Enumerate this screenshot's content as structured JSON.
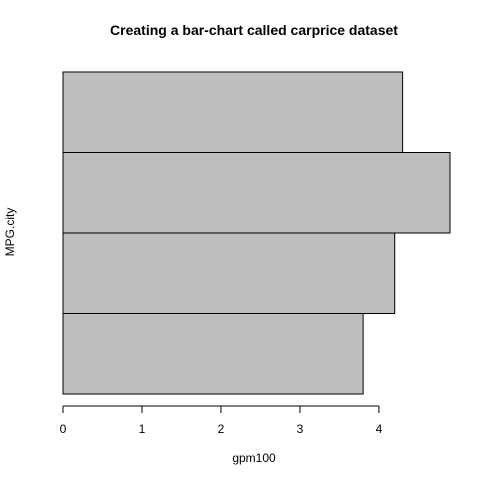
{
  "chart_data": {
    "type": "bar",
    "orientation": "horizontal",
    "title": "Creating a bar-chart called carprice dataset",
    "xlabel": "gpm100",
    "ylabel": "MPG.city",
    "values": [
      3.8,
      4.2,
      4.9,
      4.3
    ],
    "xlim": [
      0,
      4.9
    ],
    "xticks": [
      "0",
      "1",
      "2",
      "3",
      "4"
    ],
    "bar_color": "#bebebe",
    "grid": false
  }
}
